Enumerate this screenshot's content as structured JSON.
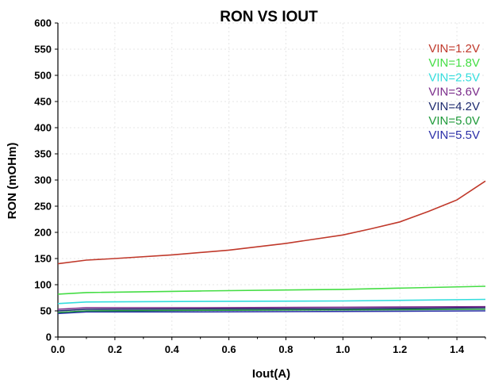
{
  "chart_data": {
    "type": "line",
    "title": "RON VS IOUT",
    "xlabel": "Iout(A)",
    "ylabel": "RON (mOHm)",
    "xlim": [
      0,
      1.5
    ],
    "ylim": [
      0,
      600
    ],
    "xticks": [
      "0.0",
      "0.2",
      "0.4",
      "0.6",
      "0.8",
      "1.0",
      "1.2",
      "1.4"
    ],
    "yticks": [
      "0",
      "50",
      "100",
      "150",
      "200",
      "250",
      "300",
      "350",
      "400",
      "450",
      "500",
      "550",
      "600"
    ],
    "grid": true,
    "legend_position": "top-right",
    "series": [
      {
        "name": "VIN=1.2V",
        "color": "#c0392b",
        "x": [
          0,
          0.1,
          0.2,
          0.4,
          0.6,
          0.8,
          1.0,
          1.1,
          1.2,
          1.3,
          1.4,
          1.5
        ],
        "y": [
          140,
          147,
          150,
          157,
          166,
          179,
          195,
          207,
          220,
          240,
          262,
          298
        ]
      },
      {
        "name": "VIN=1.8V",
        "color": "#44dd44",
        "x": [
          0,
          0.1,
          0.5,
          1.0,
          1.5
        ],
        "y": [
          82,
          85,
          88,
          91,
          97
        ]
      },
      {
        "name": "VIN=2.5V",
        "color": "#33dddd",
        "x": [
          0,
          0.1,
          0.5,
          1.0,
          1.5
        ],
        "y": [
          64,
          67,
          68,
          69,
          72
        ]
      },
      {
        "name": "VIN=3.6V",
        "color": "#7b2d8b",
        "x": [
          0,
          0.1,
          0.5,
          1.0,
          1.5
        ],
        "y": [
          53,
          56,
          56,
          57,
          58
        ]
      },
      {
        "name": "VIN=4.2V",
        "color": "#1c2a6e",
        "x": [
          0,
          0.1,
          0.5,
          1.0,
          1.5
        ],
        "y": [
          50,
          53,
          54,
          54,
          56
        ]
      },
      {
        "name": "VIN=5.0V",
        "color": "#1f9a3a",
        "x": [
          0,
          0.1,
          0.5,
          1.0,
          1.5
        ],
        "y": [
          47,
          50,
          51,
          52,
          53
        ]
      },
      {
        "name": "VIN=5.5V",
        "color": "#2b2fa8",
        "x": [
          0,
          0.1,
          0.5,
          1.0,
          1.5
        ],
        "y": [
          45,
          48,
          48,
          49,
          50
        ]
      }
    ]
  }
}
